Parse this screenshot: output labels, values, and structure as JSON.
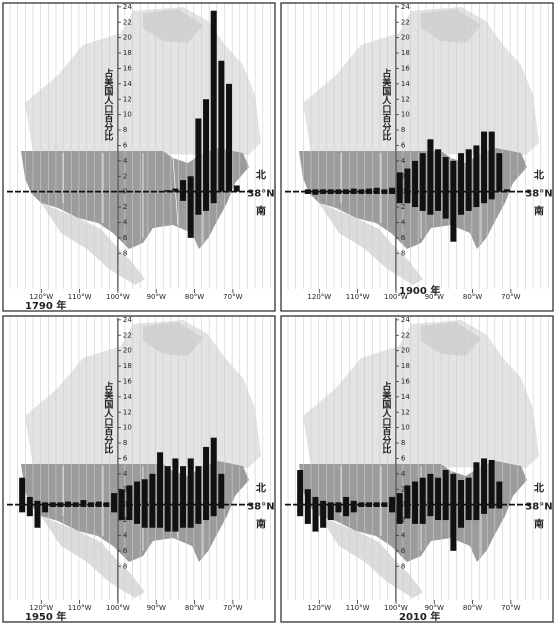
{
  "chart_data": [
    {
      "type": "bar",
      "title": "1790 年",
      "y_label": "占美国人口百分比",
      "north_label": "北",
      "south_label": "南",
      "ref_label": "38°N",
      "x": [
        -87,
        -85,
        -83,
        -81,
        -79,
        -77,
        -75,
        -73,
        -71,
        -69
      ],
      "series": [
        {
          "color": "#111111",
          "values": [
            0.2,
            0.4,
            1.5,
            2,
            9.5,
            12,
            23.5,
            17,
            14,
            0.8
          ]
        },
        {
          "color": "#111111",
          "values": [
            null,
            null,
            -1.2,
            -6,
            -3,
            -2.5,
            -1.5,
            null,
            null,
            null
          ]
        }
      ],
      "xlim": [
        -130,
        -59
      ],
      "ylim": [
        -15.5,
        24.5
      ],
      "xticks": [
        {
          "value": -120,
          "label": "120°W"
        },
        {
          "value": -110,
          "label": "110°W"
        },
        {
          "value": -100,
          "label": "100°W"
        },
        {
          "value": -90,
          "label": "90°W"
        },
        {
          "value": -80,
          "label": "80°W"
        },
        {
          "value": -70,
          "label": "70°W"
        }
      ],
      "yticks": [
        24,
        22,
        20,
        18,
        16,
        14,
        12,
        10,
        8,
        6,
        4,
        2,
        0,
        {
          "value": -2,
          "label": "2"
        },
        {
          "value": -4,
          "label": "4"
        },
        {
          "value": -6,
          "label": "6"
        },
        {
          "value": -8,
          "label": "8"
        }
      ]
    },
    {
      "type": "bar",
      "title": "1900 年",
      "y_label": "占美国人口百分比",
      "north_label": "北",
      "south_label": "南",
      "ref_label": "38°N",
      "x": [
        -123,
        -121,
        -119,
        -117,
        -115,
        -113,
        -111,
        -109,
        -107,
        -105,
        -103,
        -101,
        -99,
        -97,
        -95,
        -93,
        -91,
        -89,
        -87,
        -85,
        -83,
        -81,
        -79,
        -77,
        -75,
        -73,
        -71
      ],
      "series": [
        {
          "color": "#111111",
          "values": [
            0.3,
            0.3,
            0.3,
            0.3,
            0.3,
            0.3,
            0.4,
            0.3,
            0.4,
            0.5,
            0.3,
            0.5,
            2.5,
            3,
            4,
            5,
            6.8,
            5.5,
            4.5,
            4,
            5,
            5.5,
            6,
            7.8,
            7.8,
            5,
            0.3
          ]
        },
        {
          "color": "#111111",
          "values": [
            -0.3,
            -0.4,
            -0.3,
            -0.3,
            -0.3,
            -0.3,
            -0.3,
            -0.3,
            -0.3,
            -0.3,
            -0.3,
            -0.3,
            -1.5,
            -1.5,
            -2,
            -2.5,
            -3,
            -2.5,
            -3.5,
            -6.5,
            -3,
            -2.5,
            -2,
            -1.5,
            -1,
            null,
            null
          ]
        }
      ],
      "xlim": [
        -130,
        -59
      ],
      "ylim": [
        -15.5,
        24.5
      ],
      "xticks": [
        {
          "value": -120,
          "label": "120°W"
        },
        {
          "value": -110,
          "label": "110°W"
        },
        {
          "value": -100,
          "label": "100°W"
        },
        {
          "value": -90,
          "label": "90°W"
        },
        {
          "value": -80,
          "label": "80°W"
        },
        {
          "value": -70,
          "label": "70°W"
        }
      ],
      "yticks": [
        24,
        22,
        20,
        18,
        16,
        14,
        12,
        10,
        8,
        6,
        4,
        2,
        0,
        {
          "value": -2,
          "label": "2"
        },
        {
          "value": -4,
          "label": "4"
        },
        {
          "value": -6,
          "label": "6"
        },
        {
          "value": -8,
          "label": "8"
        }
      ]
    },
    {
      "type": "bar",
      "title": "1950 年",
      "y_label": "占美国人口百分比",
      "north_label": "北",
      "south_label": "南",
      "ref_label": "38°N",
      "x": [
        -125,
        -123,
        -121,
        -119,
        -117,
        -115,
        -113,
        -111,
        -109,
        -107,
        -105,
        -103,
        -101,
        -99,
        -97,
        -95,
        -93,
        -91,
        -89,
        -87,
        -85,
        -83,
        -81,
        -79,
        -77,
        -75,
        -73
      ],
      "series": [
        {
          "color": "#111111",
          "values": [
            3.5,
            1,
            0.5,
            0.3,
            0.3,
            0.3,
            0.4,
            0.3,
            0.6,
            0.3,
            0.4,
            0.3,
            1.5,
            2,
            2.5,
            3,
            3.3,
            4,
            6.8,
            5,
            6,
            5,
            6,
            5,
            7.5,
            8.7,
            4
          ]
        },
        {
          "color": "#111111",
          "values": [
            -1,
            -1.5,
            -3,
            -1,
            -0.3,
            -0.3,
            -0.3,
            -0.3,
            -0.3,
            -0.3,
            -0.3,
            -0.3,
            -1,
            -2,
            -2,
            -2.5,
            -3,
            -3,
            -3,
            -3.5,
            -3.5,
            -3,
            -3,
            -2.5,
            -2,
            -1.5,
            -0.5
          ]
        }
      ],
      "xlim": [
        -130,
        -59
      ],
      "ylim": [
        -15.5,
        24.5
      ],
      "xticks": [
        {
          "value": -120,
          "label": "120°W"
        },
        {
          "value": -110,
          "label": "110°W"
        },
        {
          "value": -100,
          "label": "100°W"
        },
        {
          "value": -90,
          "label": "90°W"
        },
        {
          "value": -80,
          "label": "80°W"
        },
        {
          "value": -70,
          "label": "70°W"
        }
      ],
      "yticks": [
        24,
        22,
        20,
        18,
        16,
        14,
        12,
        10,
        8,
        6,
        4,
        2,
        0,
        {
          "value": -2,
          "label": "2"
        },
        {
          "value": -4,
          "label": "4"
        },
        {
          "value": -6,
          "label": "6"
        },
        {
          "value": -8,
          "label": "8"
        }
      ]
    },
    {
      "type": "bar",
      "title": "2010 年",
      "y_label": "占美国人口百分比",
      "north_label": "北",
      "south_label": "南",
      "ref_label": "38°N",
      "x": [
        -125,
        -123,
        -121,
        -119,
        -117,
        -115,
        -113,
        -111,
        -109,
        -107,
        -105,
        -103,
        -101,
        -99,
        -97,
        -95,
        -93,
        -91,
        -89,
        -87,
        -85,
        -83,
        -81,
        -79,
        -77,
        -75,
        -73
      ],
      "series": [
        {
          "color": "#111111",
          "values": [
            4.5,
            2,
            1,
            0.5,
            0.3,
            0.3,
            1,
            0.5,
            0.3,
            0.3,
            0.3,
            0.3,
            1,
            1.5,
            2.5,
            3,
            3.5,
            4,
            3.5,
            4.5,
            4,
            3.2,
            3.5,
            5.5,
            6,
            5.8,
            3
          ]
        },
        {
          "color": "#111111",
          "values": [
            -1.5,
            -2.5,
            -3.5,
            -3,
            -2,
            -1,
            -1.5,
            -1,
            -0.3,
            -0.3,
            -0.3,
            -0.3,
            -1,
            -2.5,
            -1.8,
            -2.5,
            -2.5,
            -1.5,
            -2,
            -2,
            -6,
            -3,
            -2,
            -2,
            -1.2,
            -0.5,
            -0.5
          ]
        }
      ],
      "xlim": [
        -130,
        -59
      ],
      "ylim": [
        -15.5,
        24.5
      ],
      "xticks": [
        {
          "value": -120,
          "label": "120°W"
        },
        {
          "value": -110,
          "label": "110°W"
        },
        {
          "value": -100,
          "label": "100°W"
        },
        {
          "value": -90,
          "label": "90°W"
        },
        {
          "value": -80,
          "label": "80°W"
        },
        {
          "value": -70,
          "label": "70°W"
        }
      ],
      "yticks": [
        24,
        22,
        20,
        18,
        16,
        14,
        12,
        10,
        8,
        6,
        4,
        2,
        0,
        {
          "value": -2,
          "label": "2"
        },
        {
          "value": -4,
          "label": "4"
        },
        {
          "value": -6,
          "label": "6"
        },
        {
          "value": -8,
          "label": "8"
        }
      ]
    }
  ]
}
